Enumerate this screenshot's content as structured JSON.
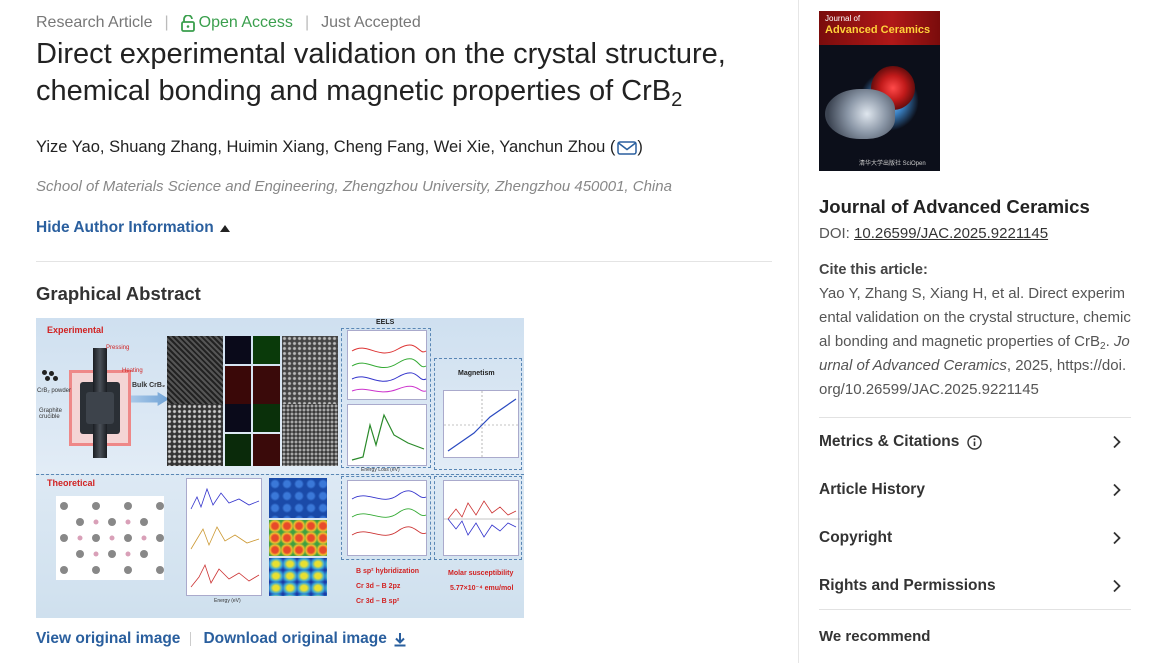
{
  "article": {
    "type": "Research Article",
    "access": "Open Access",
    "status": "Just Accepted",
    "title_main": "Direct experimental validation on the crystal structure, chemical bonding and magnetic properties of CrB",
    "title_sub": "2",
    "authors": "Yize Yao, Shuang Zhang, Huimin Xiang, Cheng Fang, Wei Xie, Yanchun Zhou (",
    "authors_close": ")",
    "affiliation": "School of Materials Science and Engineering, Zhengzhou University, Zhengzhou 450001, China",
    "hide_author_label": "Hide Author Information",
    "graphical_abstract_heading": "Graphical Abstract",
    "view_image_label": "View original image",
    "download_image_label": "Download original image"
  },
  "figure": {
    "experimental": "Experimental",
    "theoretical": "Theoretical",
    "pressing": "Pressing",
    "heating": "Heating",
    "powder": "CrB₂ powder",
    "crucible": "Graphite crucible",
    "bulk": "Bulk CrB₂",
    "eels": "EELS",
    "magnetism": "Magnetism",
    "hybrid1": "B sp² hybridization",
    "hybrid2": "Cr 3d – B 2pz",
    "hybrid3": "Cr 3d – B sp²",
    "molar": "Molar susceptibility",
    "molar_val": "5.77×10⁻⁴ emu/mol",
    "energy_loss": "Energy Loss (eV)",
    "energy": "Energy (eV)"
  },
  "sidebar": {
    "cover_journal_small": "Journal of",
    "cover_journal_big": "Advanced Ceramics",
    "cover_footer": "清华大学出版社  SciOpen",
    "journal_name": "Journal of Advanced Ceramics",
    "doi_label": "DOI: ",
    "doi_value": "10.26599/JAC.2025.9221145",
    "cite_heading": "Cite this article:",
    "cite_part1": "Yao Y, Zhang S, Xiang H, et al. Direct experimental validation on the crystal structure, chemical bonding and magnetic properties of CrB",
    "cite_sub": "2",
    "cite_part2": ". ",
    "cite_journal": "Journal of Advanced Ceramics",
    "cite_part3": ", 2025, https://doi.org/10.26599/JAC.2025.9221145",
    "items": [
      {
        "label": "Metrics & Citations"
      },
      {
        "label": "Article History"
      },
      {
        "label": "Copyright"
      },
      {
        "label": "Rights and Permissions"
      }
    ],
    "we_recommend": "We recommend"
  },
  "colors": {
    "link": "#2a5f9e",
    "open_access": "#3a9f4d",
    "figure_red": "#d12222"
  }
}
